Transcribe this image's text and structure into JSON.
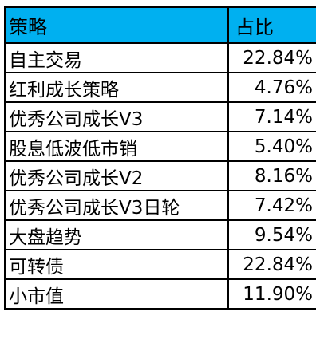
{
  "table": {
    "headers": [
      "策略",
      "占比"
    ],
    "rows": [
      {
        "name": "自主交易",
        "value": "22.84%"
      },
      {
        "name": "红利成长策略",
        "value": "4.76%"
      },
      {
        "name": "优秀公司成长V3",
        "value": "7.14%"
      },
      {
        "name": "股息低波低市销",
        "value": "5.40%"
      },
      {
        "name": "优秀公司成长V2",
        "value": "8.16%"
      },
      {
        "name": "优秀公司成长V3日轮",
        "value": "7.42%"
      },
      {
        "name": "大盘趋势",
        "value": "9.54%"
      },
      {
        "name": "可转债",
        "value": "22.84%"
      },
      {
        "name": "小市值",
        "value": "11.90%"
      }
    ]
  },
  "colors": {
    "header_bg": "#00b0f0",
    "border": "#000000",
    "text": "#000000"
  }
}
